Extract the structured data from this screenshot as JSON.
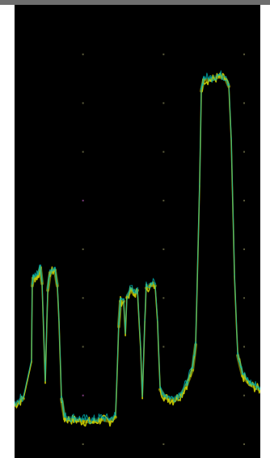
{
  "chart_data": {
    "type": "line",
    "title": "",
    "xlabel": "",
    "ylabel": "",
    "grid": true,
    "grid_divisions": {
      "x": 3,
      "y": 9
    },
    "xlim": [
      0,
      100
    ],
    "ylim": [
      0,
      100
    ],
    "background_color": "#000000",
    "grid_color": "#5a5a3a",
    "marker_color": "#7a3a7a",
    "series": [
      {
        "color": "#c8c800",
        "points": [
          [
            0.0,
            11.6
          ],
          [
            3.6,
            13.1
          ],
          [
            6.9,
            21.2
          ],
          [
            7.2,
            38.0
          ],
          [
            7.6,
            39.7
          ],
          [
            9.5,
            40.0
          ],
          [
            10.5,
            42.0
          ],
          [
            11.2,
            38.5
          ],
          [
            12.5,
            16.5
          ],
          [
            13.5,
            37.0
          ],
          [
            14.5,
            40.9
          ],
          [
            16.4,
            41.5
          ],
          [
            17.4,
            38.0
          ],
          [
            18.1,
            30.0
          ],
          [
            19.1,
            13.0
          ],
          [
            20.4,
            8.6
          ],
          [
            24.0,
            8.4
          ],
          [
            28.0,
            8.1
          ],
          [
            32.0,
            7.9
          ],
          [
            35.5,
            8.5
          ],
          [
            38.8,
            8.1
          ],
          [
            41.1,
            9.0
          ],
          [
            42.4,
            29.0
          ],
          [
            43.1,
            34.6
          ],
          [
            44.4,
            34.6
          ],
          [
            45.1,
            27.0
          ],
          [
            45.7,
            35.4
          ],
          [
            47.4,
            37.0
          ],
          [
            48.7,
            36.0
          ],
          [
            50.0,
            37.0
          ],
          [
            51.3,
            24.0
          ],
          [
            52.0,
            13.1
          ],
          [
            53.0,
            30.0
          ],
          [
            53.6,
            37.5
          ],
          [
            55.6,
            38.1
          ],
          [
            57.2,
            38.0
          ],
          [
            58.2,
            30.0
          ],
          [
            59.2,
            15.1
          ],
          [
            61.2,
            13.3
          ],
          [
            64.5,
            12.7
          ],
          [
            67.8,
            13.9
          ],
          [
            70.1,
            16.2
          ],
          [
            72.4,
            19.4
          ],
          [
            73.7,
            25.0
          ],
          [
            75.3,
            60.0
          ],
          [
            76.0,
            81.0
          ],
          [
            77.0,
            83.5
          ],
          [
            79.9,
            83.4
          ],
          [
            83.2,
            84.1
          ],
          [
            85.9,
            83.6
          ],
          [
            87.2,
            82.0
          ],
          [
            88.2,
            70.0
          ],
          [
            89.5,
            40.0
          ],
          [
            90.8,
            22.6
          ],
          [
            92.8,
            18.1
          ],
          [
            95.7,
            16.2
          ],
          [
            100.0,
            15.0
          ]
        ]
      },
      {
        "color": "#00b4b4",
        "points": [
          [
            0.0,
            12.1
          ],
          [
            3.6,
            13.6
          ],
          [
            6.9,
            21.7
          ],
          [
            7.2,
            38.5
          ],
          [
            7.6,
            40.2
          ],
          [
            9.5,
            40.5
          ],
          [
            10.5,
            42.5
          ],
          [
            11.2,
            39.0
          ],
          [
            12.5,
            17.0
          ],
          [
            13.5,
            37.5
          ],
          [
            14.5,
            41.4
          ],
          [
            16.4,
            42.0
          ],
          [
            17.4,
            38.5
          ],
          [
            18.1,
            30.5
          ],
          [
            19.1,
            13.5
          ],
          [
            20.4,
            9.1
          ],
          [
            24.0,
            8.9
          ],
          [
            28.0,
            8.6
          ],
          [
            32.0,
            8.4
          ],
          [
            35.5,
            9.0
          ],
          [
            38.8,
            8.6
          ],
          [
            41.1,
            9.5
          ],
          [
            42.4,
            29.5
          ],
          [
            43.1,
            35.1
          ],
          [
            44.4,
            35.1
          ],
          [
            45.1,
            27.5
          ],
          [
            45.7,
            35.9
          ],
          [
            47.4,
            37.5
          ],
          [
            48.7,
            36.5
          ],
          [
            50.0,
            37.5
          ],
          [
            51.3,
            24.5
          ],
          [
            52.0,
            13.6
          ],
          [
            53.0,
            30.5
          ],
          [
            53.6,
            38.0
          ],
          [
            55.6,
            38.6
          ],
          [
            57.2,
            38.5
          ],
          [
            58.2,
            30.5
          ],
          [
            59.2,
            15.6
          ],
          [
            61.2,
            13.8
          ],
          [
            64.5,
            13.2
          ],
          [
            67.8,
            14.4
          ],
          [
            70.1,
            16.7
          ],
          [
            72.4,
            19.9
          ],
          [
            73.7,
            25.5
          ],
          [
            75.3,
            60.5
          ],
          [
            76.0,
            81.5
          ],
          [
            77.0,
            84.0
          ],
          [
            79.9,
            83.9
          ],
          [
            83.2,
            84.6
          ],
          [
            85.9,
            84.1
          ],
          [
            87.2,
            82.5
          ],
          [
            88.2,
            70.5
          ],
          [
            89.5,
            40.5
          ],
          [
            90.8,
            23.1
          ],
          [
            92.8,
            18.6
          ],
          [
            95.7,
            16.7
          ],
          [
            100.0,
            15.5
          ]
        ]
      }
    ]
  }
}
